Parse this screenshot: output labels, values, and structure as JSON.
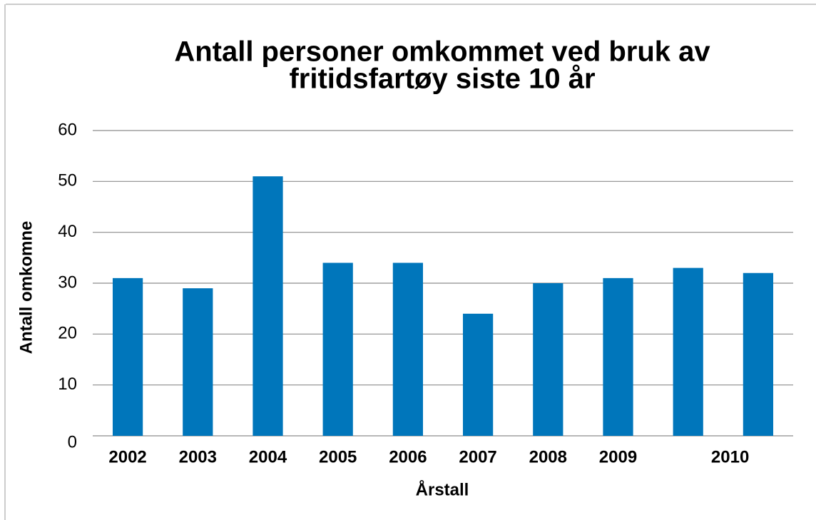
{
  "chart_data": {
    "type": "bar",
    "title": [
      "Antall personer omkommet ved bruk av",
      "fritidsfartøy siste 10 år"
    ],
    "x_label": "Årstall",
    "y_label": "Antall omkomne",
    "categories": [
      "2002",
      "2003",
      "2004",
      "2005",
      "2006",
      "2007",
      "2008",
      "2009",
      null,
      "2010"
    ],
    "values": [
      31,
      29,
      51,
      34,
      34,
      24,
      30,
      31,
      33,
      32
    ],
    "color": "#0076bb",
    "ylim": [
      0,
      60
    ],
    "yticks": [
      0,
      10,
      20,
      30,
      40,
      50,
      60
    ],
    "grid": true
  }
}
